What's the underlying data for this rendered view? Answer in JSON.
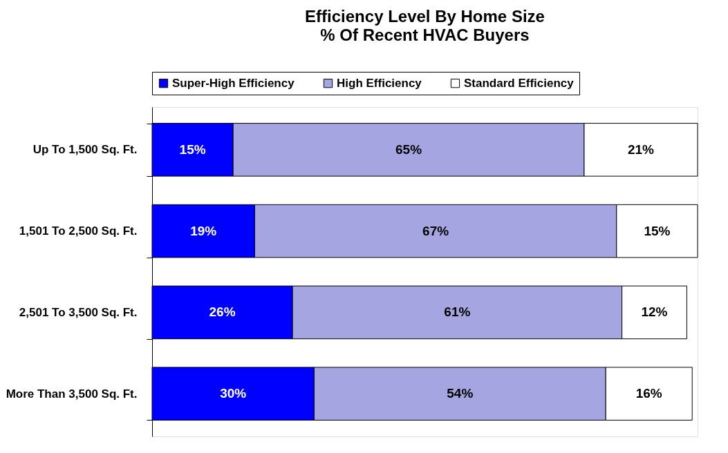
{
  "chart_data": {
    "type": "bar",
    "orientation": "horizontal",
    "stacked": true,
    "title": "Efficiency Level By Home Size",
    "subtitle": "% Of Recent HVAC Buyers",
    "categories": [
      "Up To 1,500 Sq. Ft.",
      "1,501 To 2,500 Sq. Ft.",
      "2,501 To 3,500 Sq. Ft.",
      "More Than 3,500 Sq. Ft."
    ],
    "series": [
      {
        "name": "Super-High Efficiency",
        "color": "#0000ff",
        "values": [
          15,
          19,
          26,
          30
        ],
        "value_labels": [
          "15%",
          "19%",
          "26%",
          "30%"
        ]
      },
      {
        "name": "High Efficiency",
        "color": "#a5a5e1",
        "values": [
          65,
          67,
          61,
          54
        ],
        "value_labels": [
          "65%",
          "67%",
          "61%",
          "54%"
        ]
      },
      {
        "name": "Standard Efficiency",
        "color": "#ffffff",
        "values": [
          21,
          15,
          12,
          16
        ],
        "value_labels": [
          "21%",
          "15%",
          "12%",
          "16%"
        ]
      }
    ],
    "legend": "top",
    "grid": false,
    "tick_labels": "y"
  }
}
